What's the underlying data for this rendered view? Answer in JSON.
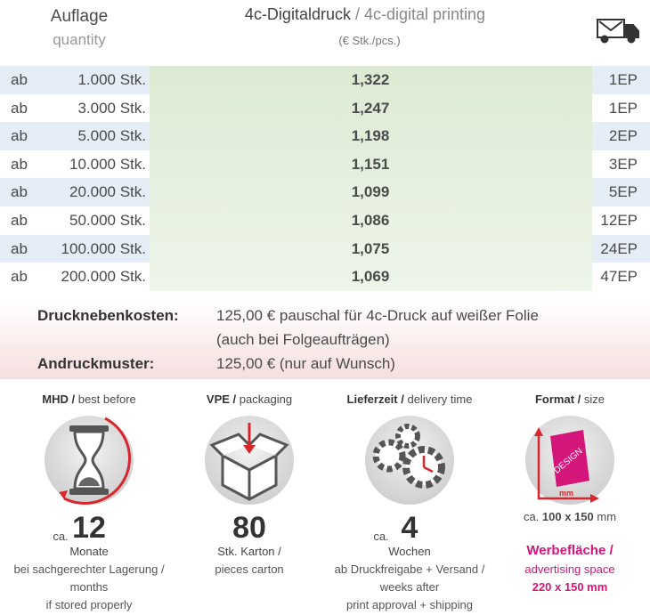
{
  "header": {
    "quantity_de": "Auflage",
    "quantity_en": "quantity",
    "print_de": "4c-Digitaldruck",
    "print_en": "/ 4c-digital printing",
    "unit": "(€ Stk./pcs.)"
  },
  "table": {
    "rows": [
      {
        "prefix": "ab",
        "quantity": "1.000 Stk.",
        "price": "1,322",
        "shipping": "1EP"
      },
      {
        "prefix": "ab",
        "quantity": "3.000 Stk.",
        "price": "1,247",
        "shipping": "1EP"
      },
      {
        "prefix": "ab",
        "quantity": "5.000 Stk.",
        "price": "1,198",
        "shipping": "2EP"
      },
      {
        "prefix": "ab",
        "quantity": "10.000 Stk.",
        "price": "1,151",
        "shipping": "3EP"
      },
      {
        "prefix": "ab",
        "quantity": "20.000 Stk.",
        "price": "1,099",
        "shipping": "5EP"
      },
      {
        "prefix": "ab",
        "quantity": "50.000 Stk.",
        "price": "1,086",
        "shipping": "12EP"
      },
      {
        "prefix": "ab",
        "quantity": "100.000 Stk.",
        "price": "1,075",
        "shipping": "24EP"
      },
      {
        "prefix": "ab",
        "quantity": "200.000 Stk.",
        "price": "1,069",
        "shipping": "47EP"
      }
    ]
  },
  "costs": [
    {
      "label": "Drucknebenkosten:",
      "lines": [
        "125,00 € pauschal für 4c-Druck auf weißer Folie",
        "(auch bei Folgeaufträgen)"
      ]
    },
    {
      "label": "Andruckmuster:",
      "lines": [
        "125,00 € (nur auf Wunsch)"
      ]
    }
  ],
  "features": [
    {
      "title": "MHD /",
      "subtitle": "best before",
      "prefix": "ca.",
      "value": "12",
      "lines": [
        "Monate",
        "bei sachgerechter Lagerung /",
        "months",
        "if stored properly"
      ]
    },
    {
      "title": "VPE /",
      "subtitle": "packaging",
      "value": "80",
      "lines": [
        "Stk. Karton /",
        "pieces carton"
      ]
    },
    {
      "title": "Lieferzeit /",
      "subtitle": "delivery time",
      "prefix": "ca.",
      "value": "4",
      "lines": [
        "Wochen",
        "ab Druckfreigabe + Versand /",
        "weeks after",
        "print approval + shipping"
      ]
    },
    {
      "title": "Format /",
      "subtitle": "size",
      "size_prefix": "ca.",
      "size": "100 x 150",
      "size_unit": "mm",
      "icon_label": "DESIGN",
      "icon_unit": "mm",
      "promo_title": "Werbefläche /",
      "promo_lines": [
        "advertising space"
      ],
      "promo_size": "220 x 150 mm"
    }
  ]
}
